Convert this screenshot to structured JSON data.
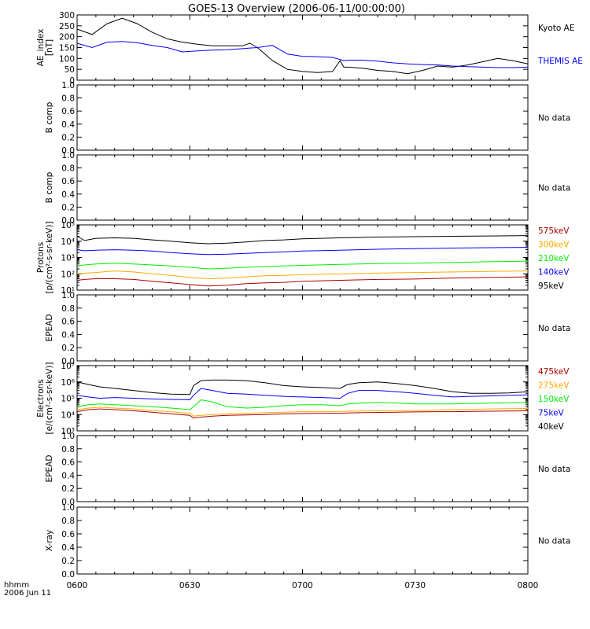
{
  "title": "GOES-13 Overview (2006-06-11/00:00:00)",
  "time_axis": {
    "label_line1": "hhmm",
    "label_line2": "2006 Jun 11",
    "ticks": [
      "0600",
      "0630",
      "0700",
      "0730",
      "0800"
    ]
  },
  "colors": {
    "black": "#000000",
    "blue": "#0000ff",
    "green": "#00ee00",
    "orange": "#ffaa00",
    "darkred": "#aa0000"
  },
  "chart_data": [
    {
      "id": "ae",
      "type": "line",
      "ylabel_line1": "AE_index",
      "ylabel_line2": "[nT]",
      "scale": "linear",
      "ylim": [
        0,
        300
      ],
      "yticks": [
        "0",
        "50",
        "100",
        "150",
        "200",
        "250",
        "300"
      ],
      "x": [
        "06:00",
        "06:04",
        "06:08",
        "06:12",
        "06:16",
        "06:20",
        "06:24",
        "06:28",
        "06:32",
        "06:36",
        "06:40",
        "06:44",
        "06:46",
        "06:48",
        "06:50",
        "06:52",
        "06:56",
        "07:00",
        "07:04",
        "07:08",
        "07:10",
        "07:11",
        "07:12",
        "07:16",
        "07:20",
        "07:24",
        "07:28",
        "07:32",
        "07:36",
        "07:40",
        "07:44",
        "07:48",
        "07:52",
        "07:56",
        "08:00"
      ],
      "series": [
        {
          "name": "Kyoto AE",
          "color": "#000000",
          "values": [
            235,
            210,
            260,
            285,
            260,
            220,
            190,
            175,
            165,
            158,
            158,
            158,
            170,
            150,
            120,
            90,
            50,
            40,
            35,
            40,
            90,
            60,
            60,
            55,
            45,
            40,
            30,
            45,
            65,
            60,
            70,
            85,
            100,
            90,
            75
          ]
        },
        {
          "name": "THEMIS AE",
          "color": "#0000ff",
          "values": [
            170,
            150,
            175,
            178,
            172,
            160,
            150,
            130,
            135,
            138,
            140,
            145,
            148,
            150,
            155,
            160,
            120,
            110,
            108,
            105,
            95,
            90,
            92,
            92,
            88,
            80,
            75,
            72,
            70,
            65,
            62,
            60,
            58,
            58,
            60
          ]
        }
      ]
    },
    {
      "id": "bcomp1",
      "type": "line",
      "ylabel_line1": "B comp",
      "scale": "linear",
      "ylim": [
        0,
        1
      ],
      "yticks": [
        "0.0",
        "0.2",
        "0.4",
        "0.6",
        "0.8",
        "1.0"
      ],
      "no_data_text": "No data",
      "series": []
    },
    {
      "id": "bcomp2",
      "type": "line",
      "ylabel_line1": "B comp",
      "scale": "linear",
      "ylim": [
        0,
        1
      ],
      "yticks": [
        "0.0",
        "0.2",
        "0.4",
        "0.6",
        "0.8",
        "1.0"
      ],
      "no_data_text": "No data",
      "series": []
    },
    {
      "id": "protons",
      "type": "line",
      "ylabel_line1": "Protons",
      "ylabel_line2": "[p/(cm²-s-sr-keV)]",
      "scale": "log",
      "ylim": [
        10,
        100000
      ],
      "yticks": [
        "10¹",
        "10²",
        "10³",
        "10⁴",
        "10⁵"
      ],
      "x": [
        "06:00",
        "06:02",
        "06:05",
        "06:10",
        "06:15",
        "06:20",
        "06:25",
        "06:30",
        "06:35",
        "06:40",
        "06:45",
        "06:50",
        "06:55",
        "07:00",
        "07:10",
        "07:20",
        "07:30",
        "07:40",
        "07:50",
        "08:00"
      ],
      "series": [
        {
          "name": "575keV",
          "color": "#aa0000",
          "values": [
            40,
            45,
            50,
            50,
            45,
            35,
            28,
            22,
            18,
            20,
            25,
            28,
            30,
            35,
            40,
            45,
            48,
            55,
            60,
            65
          ]
        },
        {
          "name": "300keV",
          "color": "#ffaa00",
          "values": [
            100,
            110,
            120,
            150,
            130,
            100,
            80,
            60,
            50,
            55,
            65,
            75,
            80,
            90,
            100,
            110,
            120,
            130,
            140,
            150
          ]
        },
        {
          "name": "210keV",
          "color": "#00ee00",
          "values": [
            300,
            350,
            400,
            450,
            400,
            350,
            300,
            250,
            200,
            220,
            250,
            280,
            300,
            330,
            380,
            420,
            450,
            500,
            550,
            600
          ]
        },
        {
          "name": "140keV",
          "color": "#0000ff",
          "values": [
            3000,
            2600,
            2800,
            3000,
            2800,
            2500,
            2000,
            1700,
            1500,
            1600,
            1800,
            2000,
            2200,
            2500,
            2800,
            3200,
            3500,
            3800,
            4000,
            4200
          ]
        },
        {
          "name": "95keV",
          "color": "#000000",
          "values": [
            20000,
            11000,
            15000,
            16000,
            15000,
            12000,
            10000,
            8000,
            7000,
            7500,
            9000,
            11000,
            12000,
            14000,
            16000,
            18000,
            19000,
            20000,
            21000,
            22000
          ]
        }
      ]
    },
    {
      "id": "epead1",
      "type": "line",
      "ylabel_line1": "EPEAD",
      "scale": "linear",
      "ylim": [
        0,
        1
      ],
      "yticks": [
        "0.0",
        "0.2",
        "0.4",
        "0.6",
        "0.8",
        "1.0"
      ],
      "no_data_text": "No data",
      "series": []
    },
    {
      "id": "electrons",
      "type": "line",
      "ylabel_line1": "Electrons",
      "ylabel_line2": "[e/(cm²-s-sr-keV)]",
      "scale": "log",
      "ylim": [
        1000,
        10000000
      ],
      "yticks": [
        "10³",
        "10⁴",
        "10⁵",
        "10⁶",
        "10⁷"
      ],
      "x": [
        "06:00",
        "06:03",
        "06:06",
        "06:10",
        "06:15",
        "06:20",
        "06:25",
        "06:30",
        "06:31",
        "06:33",
        "06:36",
        "06:40",
        "06:45",
        "06:50",
        "06:55",
        "07:00",
        "07:05",
        "07:10",
        "07:12",
        "07:15",
        "07:20",
        "07:25",
        "07:30",
        "07:35",
        "07:40",
        "07:45",
        "07:50",
        "07:55",
        "08:00"
      ],
      "series": [
        {
          "name": "475keV",
          "color": "#aa0000",
          "values": [
            15000,
            20000,
            22000,
            20000,
            17000,
            14000,
            11000,
            9000,
            6000,
            7000,
            8000,
            9000,
            9500,
            10000,
            11000,
            11500,
            12000,
            12000,
            12500,
            13000,
            13500,
            14000,
            14500,
            15000,
            15000,
            15500,
            16000,
            16500,
            17000
          ]
        },
        {
          "name": "275keV",
          "color": "#ffaa00",
          "values": [
            20000,
            25000,
            28000,
            25000,
            22000,
            18000,
            15000,
            12000,
            8000,
            9000,
            10000,
            11000,
            12000,
            13000,
            14000,
            15000,
            15000,
            15500,
            16000,
            16500,
            17000,
            17500,
            18000,
            19000,
            20000,
            21000,
            22000,
            23000,
            24000
          ]
        },
        {
          "name": "150keV",
          "color": "#00ee00",
          "values": [
            30000,
            40000,
            45000,
            40000,
            35000,
            30000,
            25000,
            20000,
            30000,
            80000,
            60000,
            30000,
            25000,
            28000,
            35000,
            40000,
            40000,
            35000,
            45000,
            50000,
            55000,
            50000,
            45000,
            45000,
            45000,
            48000,
            50000,
            52000,
            55000
          ]
        },
        {
          "name": "75keV",
          "color": "#0000ff",
          "values": [
            150000,
            120000,
            100000,
            110000,
            100000,
            90000,
            85000,
            80000,
            150000,
            400000,
            300000,
            200000,
            180000,
            150000,
            130000,
            120000,
            110000,
            100000,
            200000,
            300000,
            300000,
            250000,
            200000,
            150000,
            120000,
            130000,
            140000,
            150000,
            160000
          ]
        },
        {
          "name": "40keV",
          "color": "#000000",
          "values": [
            1000000,
            700000,
            500000,
            400000,
            300000,
            220000,
            180000,
            170000,
            600000,
            1200000,
            1300000,
            1300000,
            1200000,
            900000,
            600000,
            500000,
            450000,
            400000,
            700000,
            900000,
            1000000,
            800000,
            600000,
            400000,
            250000,
            200000,
            200000,
            210000,
            250000
          ]
        }
      ]
    },
    {
      "id": "epead2",
      "type": "line",
      "ylabel_line1": "EPEAD",
      "scale": "linear",
      "ylim": [
        0,
        1
      ],
      "yticks": [
        "0.0",
        "0.2",
        "0.4",
        "0.6",
        "0.8",
        "1.0"
      ],
      "no_data_text": "No data",
      "series": []
    },
    {
      "id": "xray",
      "type": "line",
      "ylabel_line1": "X-ray",
      "scale": "linear",
      "ylim": [
        0,
        1
      ],
      "yticks": [
        "0.0",
        "0.2",
        "0.4",
        "0.6",
        "0.8",
        "1.0"
      ],
      "no_data_text": "No data",
      "series": []
    }
  ]
}
